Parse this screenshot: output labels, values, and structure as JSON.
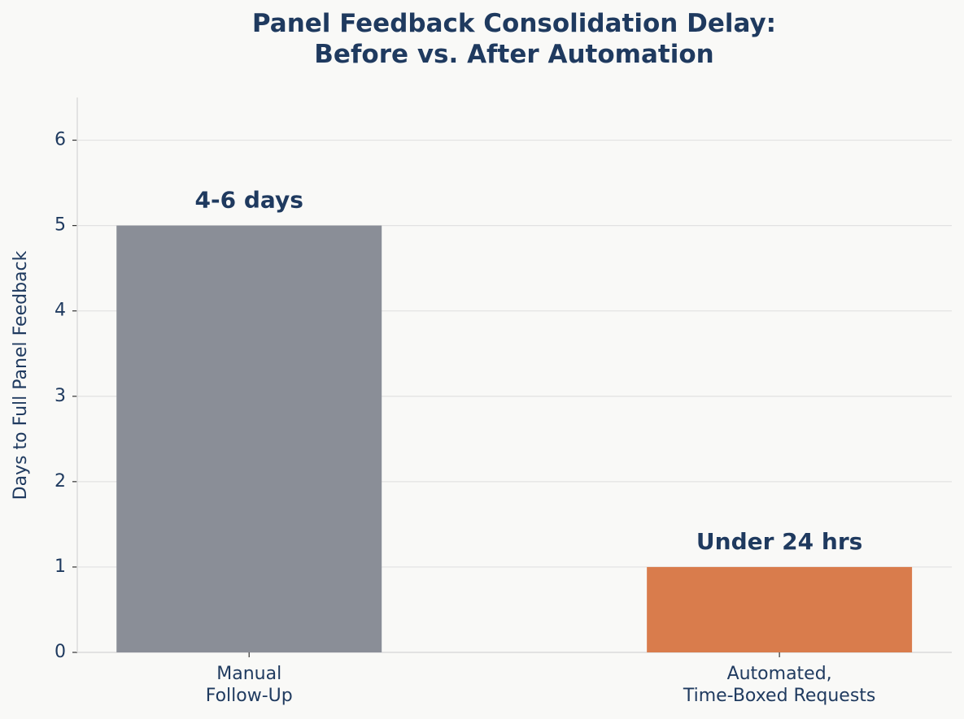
{
  "chart_data": {
    "type": "bar",
    "title": "Panel Feedback Consolidation Delay:\nBefore vs. After Automation",
    "y_label": "Days to Full Panel Feedback",
    "categories": [
      "Manual\nFollow-Up",
      "Automated,\nTime-Boxed Requests"
    ],
    "values": [
      5,
      1
    ],
    "value_labels": [
      "4-6 days",
      "Under 24 hrs"
    ],
    "colors": [
      "#8a8e97",
      "#d97c4c"
    ],
    "ylim": [
      0,
      6.5
    ],
    "yticks": [
      0,
      1,
      2,
      3,
      4,
      5,
      6
    ],
    "grid": true
  }
}
